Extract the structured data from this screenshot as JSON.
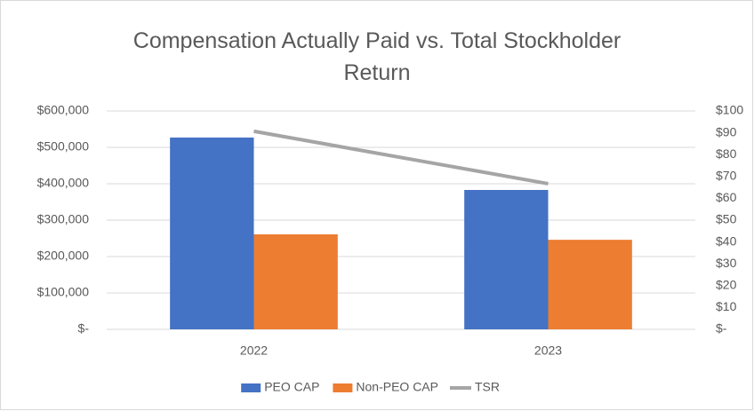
{
  "chart_data": {
    "type": "bar",
    "title": "Compensation Actually Paid vs. Total Stockholder Return",
    "categories": [
      "2022",
      "2023"
    ],
    "series": [
      {
        "name": "PEO CAP",
        "color": "#4472c4",
        "values": [
          527000,
          383000
        ]
      },
      {
        "name": "Non-PEO CAP",
        "color": "#ed7d31",
        "values": [
          261000,
          246000
        ]
      },
      {
        "name": "TSR",
        "color": "#a5a5a5",
        "type": "line",
        "axis": "y2",
        "values": [
          90.7,
          66.7
        ]
      }
    ],
    "ylim": [
      0,
      600000
    ],
    "yticks": [
      {
        "value": 0,
        "label": "$-"
      },
      {
        "value": 100000,
        "label": "$100,000"
      },
      {
        "value": 200000,
        "label": "$200,000"
      },
      {
        "value": 300000,
        "label": "$300,000"
      },
      {
        "value": 400000,
        "label": "$400,000"
      },
      {
        "value": 500000,
        "label": "$500,000"
      },
      {
        "value": 600000,
        "label": "$600,000"
      }
    ],
    "y2lim": [
      0,
      100
    ],
    "y2ticks": [
      {
        "value": 0,
        "label": "$-"
      },
      {
        "value": 10,
        "label": "$10"
      },
      {
        "value": 20,
        "label": "$20"
      },
      {
        "value": 30,
        "label": "$30"
      },
      {
        "value": 40,
        "label": "$40"
      },
      {
        "value": 50,
        "label": "$50"
      },
      {
        "value": 60,
        "label": "$60"
      },
      {
        "value": 70,
        "label": "$70"
      },
      {
        "value": 80,
        "label": "$80"
      },
      {
        "value": 90,
        "label": "$90"
      },
      {
        "value": 100,
        "label": "$100"
      }
    ],
    "grid": true,
    "legend": "bottom"
  }
}
